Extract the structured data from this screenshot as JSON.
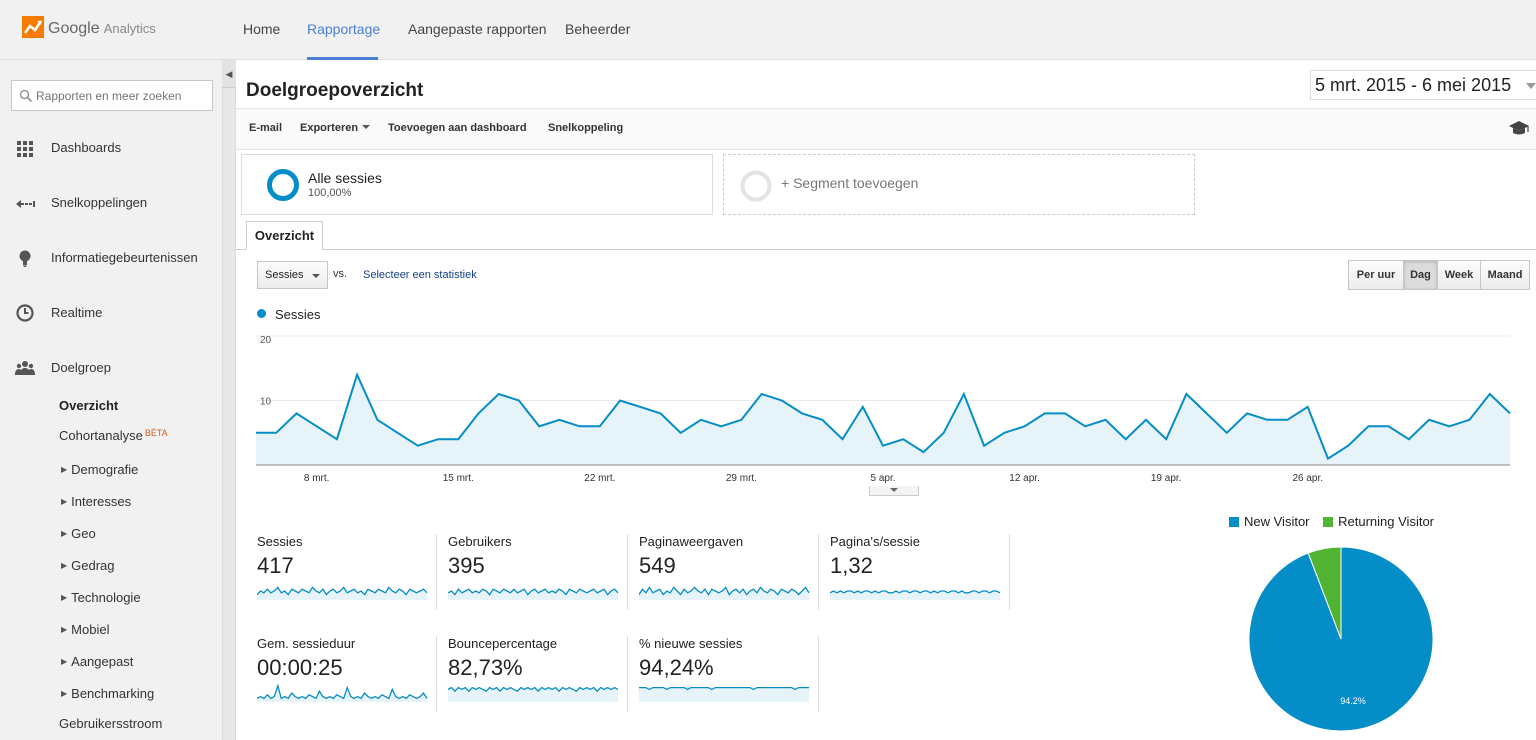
{
  "app": {
    "logo_google": "Google",
    "logo_product": "Analytics"
  },
  "nav": {
    "items": [
      {
        "label": "Home",
        "active": false
      },
      {
        "label": "Rapportage",
        "active": true
      },
      {
        "label": "Aangepaste rapporten",
        "active": false
      },
      {
        "label": "Beheerder",
        "active": false
      }
    ]
  },
  "sidebar": {
    "search_placeholder": "Rapporten en meer zoeken",
    "items": [
      {
        "label": "Dashboards",
        "icon": "grid-icon"
      },
      {
        "label": "Snelkoppelingen",
        "icon": "shortcut-arrow-icon"
      },
      {
        "label": "Informatiegebeurtenissen",
        "icon": "lightbulb-icon"
      },
      {
        "label": "Realtime",
        "icon": "clock-icon"
      },
      {
        "label": "Doelgroep",
        "icon": "people-icon"
      }
    ],
    "sub_overzicht": "Overzicht",
    "sub_cohort": "Cohortanalyse",
    "sub_cohort_badge": "BÈTA",
    "sub_collapsible": [
      "Demografie",
      "Interesses",
      "Geo",
      "Gedrag",
      "Technologie",
      "Mobiel",
      "Aangepast",
      "Benchmarking"
    ],
    "sub_flow": "Gebruikersstroom"
  },
  "page": {
    "title": "Doelgroepoverzicht",
    "date_range": "5 mrt. 2015 - 6 mei 2015"
  },
  "toolbar": {
    "email": "E-mail",
    "export": "Exporteren",
    "add_dashboard": "Toevoegen aan dashboard",
    "shortcut": "Snelkoppeling",
    "help_icon": "graduation-cap-icon"
  },
  "segments": {
    "all_name": "Alle sessies",
    "all_pct": "100,00%",
    "add_label": "+ Segment toevoegen"
  },
  "tab": {
    "label": "Overzicht"
  },
  "chart_controls": {
    "metric": "Sessies",
    "vs": "vs.",
    "select_stat": "Selecteer een statistiek",
    "periods": [
      "Per uur",
      "Dag",
      "Week",
      "Maand"
    ],
    "selected_period": "Dag"
  },
  "chart_data": [
    {
      "type": "area",
      "series": [
        {
          "name": "Sessies",
          "values": [
            5,
            5,
            8,
            6,
            4,
            14,
            7,
            5,
            3,
            4,
            4,
            8,
            11,
            10,
            6,
            7,
            6,
            6,
            10,
            9,
            8,
            5,
            7,
            6,
            7,
            11,
            10,
            8,
            7,
            4,
            9,
            3,
            4,
            2,
            5,
            11,
            3,
            5,
            6,
            8,
            8,
            6,
            7,
            4,
            7,
            4,
            11,
            8,
            5,
            8,
            7,
            7,
            9,
            1,
            3,
            6,
            6,
            4,
            7,
            6,
            7,
            11,
            8
          ]
        }
      ],
      "x_tick_labels": [
        "8 mrt.",
        "15 mrt.",
        "22 mrt.",
        "29 mrt.",
        "5 apr.",
        "12 apr.",
        "19 apr.",
        "26 apr."
      ],
      "y_tick_labels": [
        "20",
        "10"
      ],
      "ylim": [
        0,
        20
      ],
      "color": "#058dc7",
      "fill": "#e6f3f9",
      "grid": true
    },
    {
      "type": "pie",
      "categories": [
        "New Visitor",
        "Returning Visitor"
      ],
      "values": [
        94.2,
        5.8
      ],
      "colors": [
        "#058dc7",
        "#50b432"
      ],
      "slice_labels": [
        "94.2%",
        ""
      ]
    }
  ],
  "scorecards": [
    {
      "name": "Sessies",
      "value": "417",
      "spark": [
        3,
        5,
        4,
        6,
        4,
        5,
        7,
        4,
        5,
        3,
        6,
        5,
        4,
        6,
        5,
        4,
        7,
        5,
        4,
        6,
        3,
        5,
        6,
        4,
        5,
        7,
        4,
        5,
        6,
        4,
        5,
        3,
        6,
        5,
        4,
        6,
        5,
        4,
        7,
        5,
        4,
        6,
        5,
        3,
        6,
        5,
        4,
        5,
        6,
        4
      ]
    },
    {
      "name": "Gebruikers",
      "value": "395",
      "spark": [
        4,
        5,
        3,
        6,
        4,
        5,
        6,
        4,
        5,
        4,
        6,
        5,
        3,
        6,
        5,
        4,
        6,
        5,
        4,
        6,
        4,
        5,
        6,
        3,
        5,
        6,
        4,
        5,
        6,
        4,
        5,
        4,
        6,
        5,
        3,
        6,
        5,
        4,
        6,
        5,
        4,
        5,
        6,
        4,
        5,
        6,
        3,
        5,
        6,
        4
      ]
    },
    {
      "name": "Paginaweergaven",
      "value": "549",
      "spark": [
        3,
        6,
        4,
        7,
        4,
        5,
        6,
        3,
        5,
        4,
        7,
        5,
        3,
        6,
        4,
        5,
        7,
        5,
        4,
        6,
        3,
        6,
        5,
        4,
        5,
        7,
        3,
        5,
        6,
        4,
        6,
        3,
        5,
        6,
        4,
        7,
        5,
        4,
        6,
        5,
        3,
        6,
        5,
        4,
        6,
        5,
        3,
        5,
        7,
        4
      ]
    },
    {
      "name": "Pagina's/sessie",
      "value": "1,32",
      "spark": [
        4,
        5,
        4,
        5,
        4,
        5,
        5,
        4,
        5,
        4,
        5,
        5,
        4,
        5,
        4,
        5,
        5,
        4,
        4,
        5,
        4,
        5,
        5,
        4,
        5,
        5,
        4,
        5,
        5,
        4,
        5,
        4,
        5,
        5,
        4,
        5,
        5,
        4,
        5,
        4,
        4,
        5,
        5,
        4,
        5,
        5,
        4,
        5,
        5,
        4
      ]
    },
    {
      "name": "Gem. sessieduur",
      "value": "00:00:25",
      "spark": [
        2,
        3,
        2,
        4,
        2,
        3,
        9,
        2,
        3,
        2,
        5,
        3,
        2,
        3,
        2,
        4,
        3,
        2,
        6,
        3,
        2,
        3,
        2,
        4,
        3,
        2,
        8,
        3,
        2,
        3,
        2,
        5,
        3,
        2,
        3,
        2,
        4,
        3,
        2,
        7,
        3,
        2,
        3,
        2,
        4,
        3,
        2,
        3,
        5,
        2
      ]
    },
    {
      "name": "Bouncepercentage",
      "value": "82,73%",
      "spark": [
        7,
        8,
        6,
        8,
        7,
        8,
        6,
        8,
        7,
        8,
        7,
        6,
        8,
        7,
        8,
        6,
        8,
        7,
        8,
        7,
        6,
        8,
        7,
        8,
        7,
        8,
        6,
        8,
        7,
        8,
        7,
        8,
        6,
        8,
        7,
        8,
        7,
        6,
        8,
        7,
        8,
        7,
        8,
        6,
        8,
        7,
        8,
        7,
        8,
        7
      ]
    },
    {
      "name": "% nieuwe sessies",
      "value": "94,24%",
      "spark": [
        8,
        8,
        8,
        7,
        8,
        8,
        8,
        8,
        7,
        8,
        8,
        8,
        8,
        8,
        7,
        8,
        8,
        8,
        8,
        8,
        8,
        7,
        8,
        8,
        8,
        8,
        8,
        8,
        8,
        8,
        8,
        8,
        8,
        7,
        8,
        8,
        8,
        8,
        8,
        8,
        8,
        8,
        8,
        8,
        8,
        7,
        8,
        8,
        8,
        8
      ]
    }
  ]
}
